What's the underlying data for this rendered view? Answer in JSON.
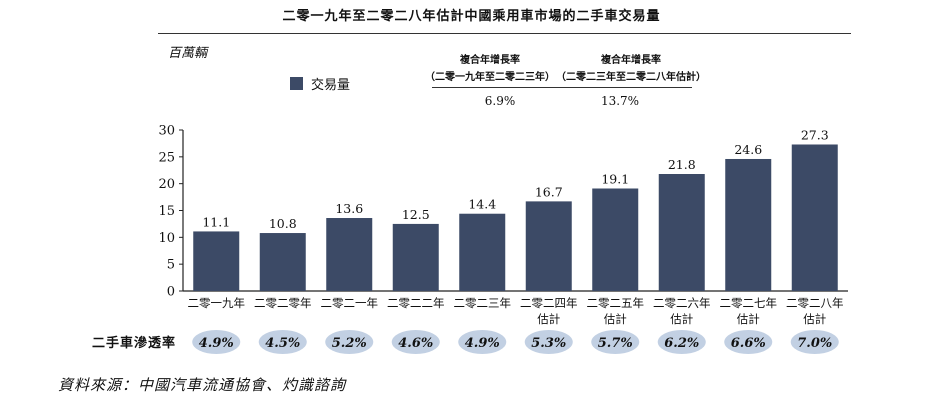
{
  "title": "二零一九年至二零二八年估計中國乘用車市場的二手車交易量",
  "unit_label": "百萬輛",
  "legend": {
    "label": "交易量",
    "color": "#3c4a66"
  },
  "cagr": [
    {
      "header": "複合年增長率",
      "period": "（二零一九年至二零二三年）",
      "value": "6.9%"
    },
    {
      "header": "複合年增長率",
      "period": "（二零二三年至二零二八年估計）",
      "value": "13.7%"
    }
  ],
  "penetration_label": "二手車滲透率",
  "source": "資料來源：中國汽車流通協會、灼識諮詢",
  "chart_data": {
    "type": "bar",
    "categories": [
      [
        "二零一九年"
      ],
      [
        "二零二零年"
      ],
      [
        "二零二一年"
      ],
      [
        "二零二二年"
      ],
      [
        "二零二三年"
      ],
      [
        "二零二四年",
        "估計"
      ],
      [
        "二零二五年",
        "估計"
      ],
      [
        "二零二六年",
        "估計"
      ],
      [
        "二零二七年",
        "估計"
      ],
      [
        "二零二八年",
        "估計"
      ]
    ],
    "values": [
      11.1,
      10.8,
      13.6,
      12.5,
      14.4,
      16.7,
      19.1,
      21.8,
      24.6,
      27.3
    ],
    "value_labels": [
      "11.1",
      "10.8",
      "13.6",
      "12.5",
      "14.4",
      "16.7",
      "19.1",
      "21.8",
      "24.6",
      "27.3"
    ],
    "penetration": [
      "4.9%",
      "4.5%",
      "5.2%",
      "4.6%",
      "4.9%",
      "5.3%",
      "5.7%",
      "6.2%",
      "6.6%",
      "7.0%"
    ],
    "yticks": [
      "0",
      "5",
      "10",
      "15",
      "20",
      "25",
      "30"
    ],
    "ylim": [
      0,
      30
    ],
    "bar_color": "#3c4a66",
    "badge_color": "#c2d0e3"
  }
}
